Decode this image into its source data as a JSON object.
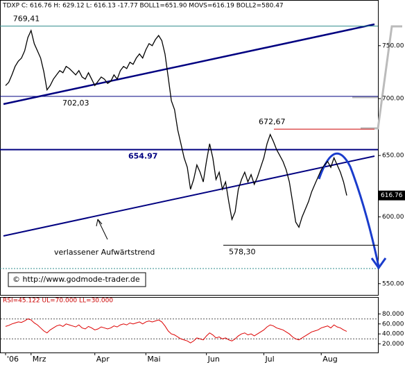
{
  "chart_data": {
    "type": "line",
    "header": "TDXP C: 616.76 H: 629.12 L: 616.13 -17.77 BOLL1=651.90 MOVS=616.19 BOLL2=580.47",
    "categories": [
      "'06",
      null,
      null,
      null,
      null,
      null,
      null,
      null,
      "Mrz",
      null,
      null,
      null,
      null,
      null,
      null,
      null,
      null,
      null,
      null,
      null,
      null,
      null,
      null,
      null,
      null,
      null,
      null,
      null,
      "Apr",
      null,
      null,
      null,
      null,
      null,
      null,
      null,
      null,
      null,
      null,
      null,
      null,
      null,
      null,
      null,
      "Mai",
      null,
      null,
      null,
      null,
      null,
      null,
      null,
      null,
      null,
      null,
      null,
      null,
      null,
      null,
      null,
      null,
      null,
      null,
      "Jun",
      null,
      null,
      null,
      null,
      null,
      null,
      null,
      null,
      null,
      null,
      null,
      null,
      null,
      null,
      null,
      null,
      null,
      "Jul",
      null,
      null,
      null,
      null,
      null,
      null,
      null,
      null,
      null,
      null,
      null,
      null,
      null,
      null,
      null,
      null,
      null,
      "Aug",
      null,
      null,
      null,
      null,
      null,
      null,
      null,
      null
    ],
    "series": [
      {
        "name": "TDXP",
        "color": "#000000",
        "values": [
          712,
          715,
          722,
          730,
          735,
          738,
          745,
          758,
          765,
          752,
          745,
          738,
          725,
          708,
          712,
          718,
          722,
          726,
          724,
          730,
          728,
          725,
          722,
          726,
          720,
          718,
          724,
          718,
          712,
          716,
          720,
          718,
          714,
          716,
          722,
          718,
          726,
          730,
          728,
          734,
          732,
          738,
          742,
          738,
          746,
          752,
          750,
          756,
          760,
          755,
          742,
          720,
          698,
          690,
          672,
          660,
          648,
          640,
          622,
          630,
          642,
          636,
          628,
          645,
          660,
          648,
          630,
          636,
          622,
          628,
          612,
          598,
          604,
          622,
          630,
          636,
          628,
          634,
          626,
          632,
          640,
          648,
          660,
          668,
          662,
          655,
          650,
          645,
          638,
          628,
          612,
          596,
          592,
          600,
          606,
          612,
          620,
          626,
          632,
          638,
          642,
          645,
          640,
          648,
          642,
          636,
          628,
          617
        ]
      }
    ],
    "last_price_label": "616.76",
    "ylim": [
      542,
      796
    ],
    "log_scale": true,
    "yticks": [
      {
        "value": 550,
        "label": "550.00"
      },
      {
        "value": 600,
        "label": "600.00"
      },
      {
        "value": 650,
        "label": "650.00"
      },
      {
        "value": 700,
        "label": "700.00"
      },
      {
        "value": 750,
        "label": "750.00"
      }
    ],
    "levels": [
      {
        "value": 769.41,
        "label": "769,41",
        "color": "#2e8b8b"
      },
      {
        "value": 702.03,
        "label": "702,03",
        "color": "#000080"
      },
      {
        "value": 672.67,
        "label": "672,67",
        "color": "#cc0000"
      },
      {
        "value": 654.97,
        "label": "654.97",
        "color": "#000080"
      },
      {
        "value": 578.3,
        "label": "578,30",
        "color": "#000000"
      }
    ],
    "trend_label": "verlassener Aufwärtstrend",
    "copyright": "© http://www.godmode-trader.de",
    "rsi": {
      "header": "RSI=45.122 UL=70.000 LL=30.000",
      "color": "#dd0000",
      "values": [
        55,
        57,
        60,
        62,
        64,
        63,
        66,
        70,
        68,
        62,
        58,
        52,
        46,
        42,
        48,
        52,
        56,
        58,
        55,
        60,
        58,
        56,
        54,
        58,
        52,
        50,
        55,
        52,
        48,
        50,
        54,
        52,
        50,
        52,
        56,
        54,
        58,
        60,
        58,
        62,
        60,
        62,
        64,
        60,
        64,
        66,
        64,
        66,
        68,
        64,
        56,
        46,
        40,
        38,
        34,
        30,
        28,
        26,
        22,
        26,
        32,
        30,
        28,
        36,
        42,
        38,
        32,
        34,
        30,
        32,
        28,
        26,
        30,
        36,
        40,
        42,
        38,
        40,
        36,
        40,
        44,
        48,
        54,
        58,
        56,
        52,
        50,
        48,
        44,
        40,
        34,
        30,
        28,
        32,
        36,
        40,
        44,
        46,
        48,
        52,
        54,
        56,
        52,
        58,
        54,
        52,
        48,
        45
      ],
      "ylim": [
        0,
        100
      ],
      "yticks": [
        {
          "value": 20,
          "label": "20.000"
        },
        {
          "value": 40,
          "label": "40.000"
        },
        {
          "value": 60,
          "label": "60.000"
        },
        {
          "value": 80,
          "label": "80.000"
        }
      ],
      "bands": [
        30,
        70
      ]
    }
  }
}
